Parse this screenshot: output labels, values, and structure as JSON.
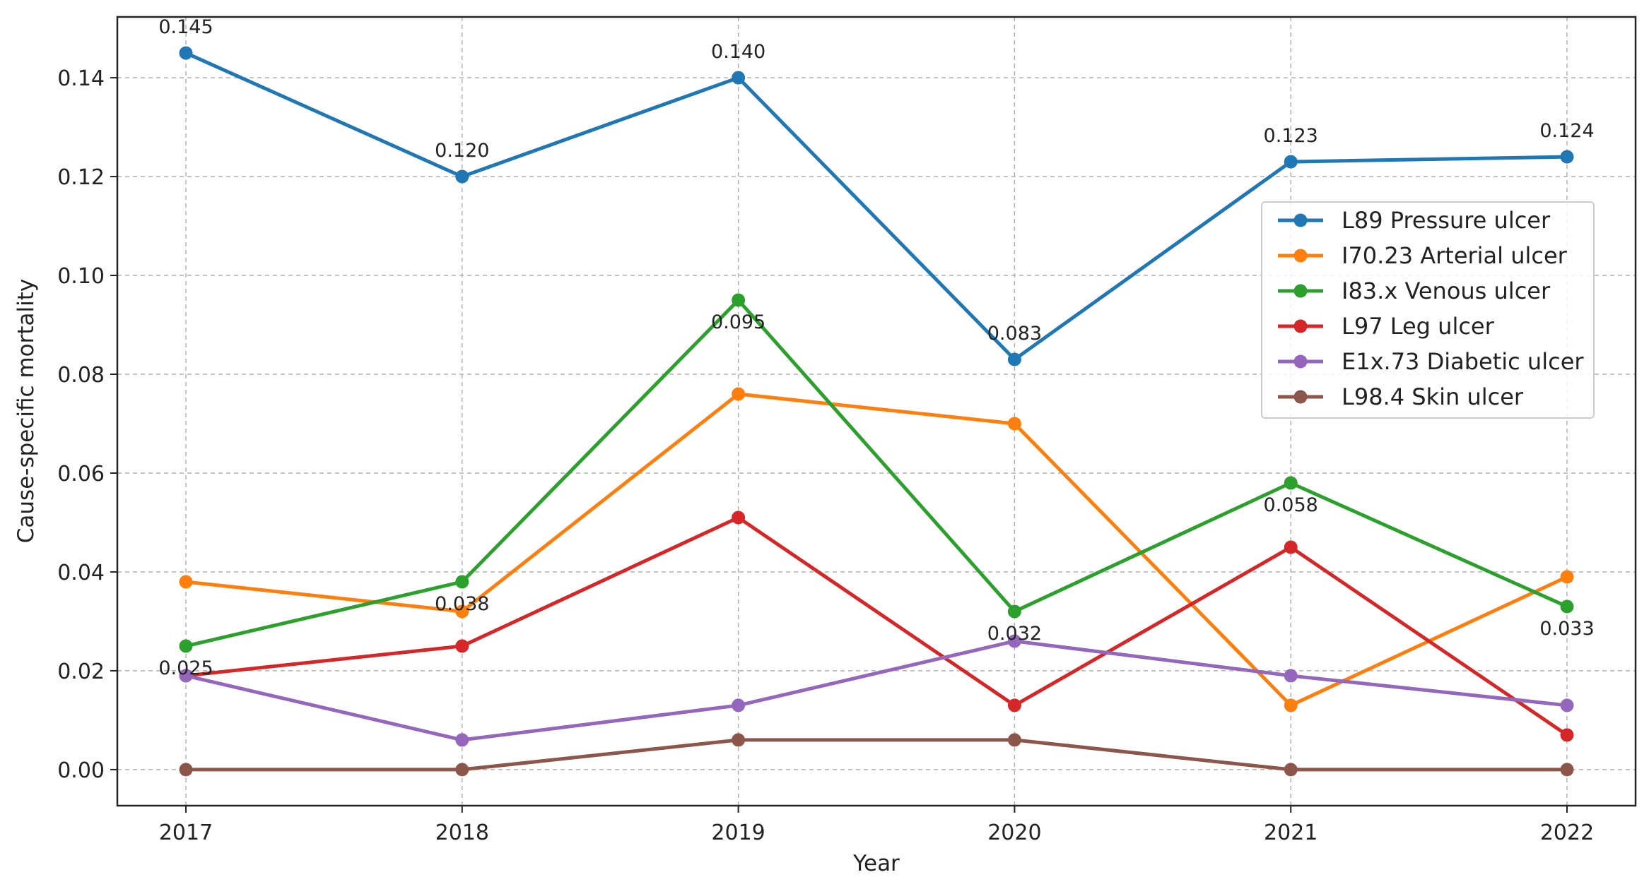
{
  "chart_data": {
    "type": "line",
    "title": "",
    "xlabel": "Year",
    "ylabel": "Cause-specific mortality",
    "x": [
      2017,
      2018,
      2019,
      2020,
      2021,
      2022
    ],
    "x_tick_labels": [
      "2017",
      "2018",
      "2019",
      "2020",
      "2021",
      "2022"
    ],
    "y_ticks": [
      0.0,
      0.02,
      0.04,
      0.06,
      0.08,
      0.1,
      0.12,
      0.14
    ],
    "y_tick_labels": [
      "0.00",
      "0.02",
      "0.04",
      "0.06",
      "0.08",
      "0.10",
      "0.12",
      "0.14"
    ],
    "ylim": [
      -0.0073,
      0.1523
    ],
    "grid": true,
    "legend_position": "center-right",
    "series": [
      {
        "name": "L89 Pressure ulcer",
        "color": "#1f77b4",
        "values": [
          0.145,
          0.12,
          0.14,
          0.083,
          0.123,
          0.124
        ]
      },
      {
        "name": "I70.23 Arterial ulcer",
        "color": "#ff7f0e",
        "values": [
          0.038,
          0.032,
          0.076,
          0.07,
          0.013,
          0.039
        ]
      },
      {
        "name": "I83.x Venous ulcer",
        "color": "#2ca02c",
        "values": [
          0.025,
          0.038,
          0.095,
          0.032,
          0.058,
          0.033
        ]
      },
      {
        "name": "L97 Leg ulcer",
        "color": "#d62728",
        "values": [
          0.019,
          0.025,
          0.051,
          0.013,
          0.045,
          0.007
        ]
      },
      {
        "name": "E1x.73 Diabetic ulcer",
        "color": "#9467bd",
        "values": [
          0.019,
          0.006,
          0.013,
          0.026,
          0.019,
          0.013
        ]
      },
      {
        "name": "L98.4 Skin ulcer",
        "color": "#8c564b",
        "values": [
          0.0,
          0.0,
          0.006,
          0.006,
          0.0,
          0.0
        ]
      }
    ],
    "annotations": [
      {
        "series": 0,
        "index": 0,
        "text": "0.145",
        "place": "above"
      },
      {
        "series": 0,
        "index": 1,
        "text": "0.120",
        "place": "above"
      },
      {
        "series": 0,
        "index": 2,
        "text": "0.140",
        "place": "above"
      },
      {
        "series": 0,
        "index": 3,
        "text": "0.083",
        "place": "above"
      },
      {
        "series": 0,
        "index": 4,
        "text": "0.123",
        "place": "above"
      },
      {
        "series": 0,
        "index": 5,
        "text": "0.124",
        "place": "above"
      },
      {
        "series": 2,
        "index": 0,
        "text": "0.025",
        "place": "below"
      },
      {
        "series": 2,
        "index": 1,
        "text": "0.038",
        "place": "below"
      },
      {
        "series": 2,
        "index": 2,
        "text": "0.095",
        "place": "below"
      },
      {
        "series": 2,
        "index": 3,
        "text": "0.032",
        "place": "below"
      },
      {
        "series": 2,
        "index": 4,
        "text": "0.058",
        "place": "below"
      },
      {
        "series": 2,
        "index": 5,
        "text": "0.033",
        "place": "below"
      }
    ]
  }
}
